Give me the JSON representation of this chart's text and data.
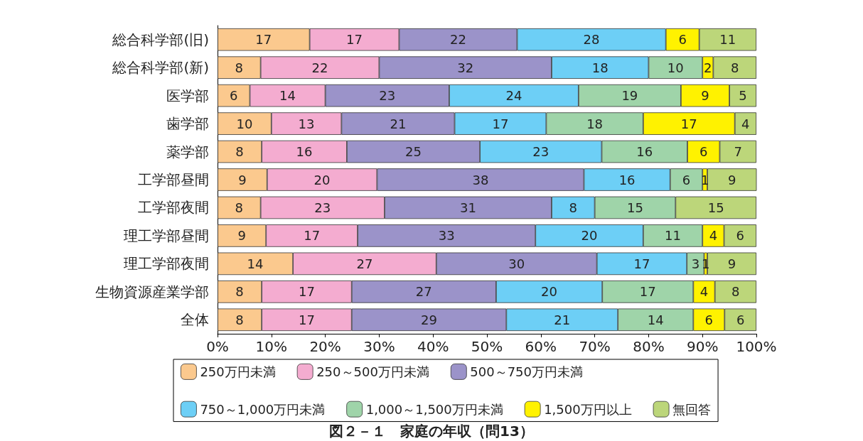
{
  "chart_data": {
    "type": "bar",
    "orientation": "horizontal",
    "stacked": true,
    "legend": "bottom",
    "title": "図２－１　家庭の年収（問13）",
    "categories": [
      "総合科学部(旧)",
      "総合科学部(新)",
      "医学部",
      "歯学部",
      "薬学部",
      "工学部昼間",
      "工学部夜間",
      "理工学部昼間",
      "理工学部夜間",
      "生物資源産業学部",
      "全体"
    ],
    "xlim": [
      0,
      100
    ],
    "xticks": [
      {
        "value": 0,
        "label": "0%"
      },
      {
        "value": 10,
        "label": "10%"
      },
      {
        "value": 20,
        "label": "20%"
      },
      {
        "value": 30,
        "label": "30%"
      },
      {
        "value": 40,
        "label": "40%"
      },
      {
        "value": 50,
        "label": "50%"
      },
      {
        "value": 60,
        "label": "60%"
      },
      {
        "value": 70,
        "label": "70%"
      },
      {
        "value": 80,
        "label": "80%"
      },
      {
        "value": 90,
        "label": "90%"
      },
      {
        "value": 100,
        "label": "100%"
      }
    ],
    "series": [
      {
        "name": "250万円未満",
        "color": "#fbc98e",
        "values": [
          17.1,
          8,
          6,
          10,
          8.2,
          9.2,
          8,
          9,
          14.0,
          8.2,
          8.2
        ],
        "value_labels": [
          "17",
          "8",
          "6",
          "10",
          "8",
          "9",
          "8",
          "9",
          "14",
          "8",
          "8"
        ]
      },
      {
        "name": "250～500万円未満",
        "color": "#f4acd0",
        "values": [
          16.6,
          22,
          14,
          13,
          15.8,
          20.4,
          23,
          17,
          26.6,
          16.7,
          16.7
        ],
        "value_labels": [
          "17",
          "22",
          "14",
          "13",
          "16",
          "20",
          "23",
          "17",
          "27",
          "17",
          "17"
        ]
      },
      {
        "name": "500～750万円未満",
        "color": "#9b93c9",
        "values": [
          21.9,
          32,
          23,
          21,
          24.7,
          38.4,
          31,
          33,
          29.8,
          26.8,
          28.7
        ],
        "value_labels": [
          "22",
          "32",
          "23",
          "21",
          "25",
          "38",
          "31",
          "33",
          "30",
          "27",
          "29"
        ]
      },
      {
        "name": "750～1,000万円未満",
        "color": "#6dcff6",
        "values": [
          27.6,
          18,
          24,
          17,
          22.6,
          16.0,
          8,
          20,
          16.7,
          19.7,
          20.7
        ],
        "value_labels": [
          "28",
          "18",
          "24",
          "17",
          "23",
          "16",
          "8",
          "20",
          "17",
          "20",
          "21"
        ]
      },
      {
        "name": "1,000～1,500万円未満",
        "color": "#9fd4a9",
        "values": [
          null,
          10,
          19,
          18,
          15.9,
          6.0,
          15,
          11,
          3.2,
          16.9,
          14.0
        ],
        "value_labels": [
          null,
          "10",
          "19",
          "18",
          "16",
          "6",
          "15",
          "11",
          "3",
          "17",
          "14"
        ]
      },
      {
        "name": "1,500万円以上",
        "color": "#fff200",
        "values": [
          6.2,
          2,
          9,
          17,
          6.0,
          0.9,
          null,
          4,
          0.6,
          4.0,
          5.8
        ],
        "value_labels": [
          "6",
          "2",
          "9",
          "17",
          "6",
          "1",
          null,
          "4",
          "1",
          "4",
          "6"
        ]
      },
      {
        "name": "無回答",
        "color": "#bcd67a",
        "values": [
          10.6,
          8,
          5,
          4,
          6.8,
          9.2,
          15,
          6,
          9.1,
          7.7,
          5.9
        ],
        "value_labels": [
          "11",
          "8",
          "5",
          "4",
          "7",
          "9",
          "15",
          "6",
          "9",
          "8",
          "6"
        ]
      }
    ]
  }
}
